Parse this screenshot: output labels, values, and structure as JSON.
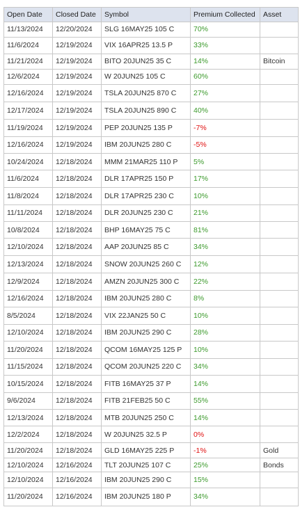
{
  "table": {
    "headers": [
      "Open Date",
      "Closed Date",
      "Symbol",
      "Premium Collected",
      "Asset"
    ],
    "rows": [
      {
        "open": "11/13/2024",
        "closed": "12/20/2024",
        "symbol": "SLG 16MAY25 105 C",
        "premium": "70%",
        "color": "#3c9a2c"
      },
      {
        "open": "11/6/2024",
        "closed": "12/19/2024",
        "symbol": "VIX 16APR25 13.5 P",
        "premium": "33%",
        "color": "#3c9a2c"
      },
      {
        "open": "11/21/2024",
        "closed": "12/19/2024",
        "symbol": "BITO 20JUN25 35 C",
        "premium": "14%",
        "color": "#3c9a2c",
        "asset": "Bitcoin"
      },
      {
        "open": "12/6/2024",
        "closed": "12/19/2024",
        "symbol": "W 20JUN25 105 C",
        "premium": "60%",
        "color": "#3c9a2c"
      },
      {
        "open": "12/16/2024",
        "closed": "12/19/2024",
        "symbol": "TSLA 20JUN25 870 C",
        "premium": "27%",
        "color": "#3c9a2c"
      },
      {
        "open": "12/17/2024",
        "closed": "12/19/2024",
        "symbol": "TSLA 20JUN25 890 C",
        "premium": "40%",
        "color": "#3c9a2c"
      },
      {
        "open": "11/19/2024",
        "closed": "12/19/2024",
        "symbol": "PEP 20JUN25 135 P",
        "premium": "-7%",
        "color": "#e01010"
      },
      {
        "open": "12/16/2024",
        "closed": "12/19/2024",
        "symbol": "IBM 20JUN25 280 C",
        "premium": "-5%",
        "color": "#e01010"
      },
      {
        "open": "10/24/2024",
        "closed": "12/18/2024",
        "symbol": "MMM 21MAR25 110 P",
        "premium": "5%",
        "color": "#3c9a2c"
      },
      {
        "open": "11/6/2024",
        "closed": "12/18/2024",
        "symbol": "DLR 17APR25 150 P",
        "premium": "17%",
        "color": "#3c9a2c"
      },
      {
        "open": "11/8/2024",
        "closed": "12/18/2024",
        "symbol": "DLR 17APR25 230 C",
        "premium": "10%",
        "color": "#3c9a2c"
      },
      {
        "open": "11/11/2024",
        "closed": "12/18/2024",
        "symbol": "DLR 20JUN25 230 C",
        "premium": "21%",
        "color": "#3c9a2c"
      },
      {
        "open": "10/8/2024",
        "closed": "12/18/2024",
        "symbol": "BHP 16MAY25 75 C",
        "premium": "81%",
        "color": "#3c9a2c"
      },
      {
        "open": "12/10/2024",
        "closed": "12/18/2024",
        "symbol": "AAP 20JUN25 85 C",
        "premium": "34%",
        "color": "#3c9a2c"
      },
      {
        "open": "12/13/2024",
        "closed": "12/18/2024",
        "symbol": "SNOW 20JUN25 260 C",
        "premium": "12%",
        "color": "#3c9a2c"
      },
      {
        "open": "12/9/2024",
        "closed": "12/18/2024",
        "symbol": "AMZN 20JUN25 300 C",
        "premium": "22%",
        "color": "#3c9a2c"
      },
      {
        "open": "12/16/2024",
        "closed": "12/18/2024",
        "symbol": "IBM 20JUN25 280 C",
        "premium": "8%",
        "color": "#3c9a2c"
      },
      {
        "open": "8/5/2024",
        "closed": "12/18/2024",
        "symbol": "VIX 22JAN25 50 C",
        "premium": "10%",
        "color": "#3c9a2c"
      },
      {
        "open": "12/10/2024",
        "closed": "12/18/2024",
        "symbol": "IBM 20JUN25 290 C",
        "premium": "28%",
        "color": "#3c9a2c"
      },
      {
        "open": "11/20/2024",
        "closed": "12/18/2024",
        "symbol": "QCOM 16MAY25 125 P",
        "premium": "10%",
        "color": "#3c9a2c"
      },
      {
        "open": "11/15/2024",
        "closed": "12/18/2024",
        "symbol": "QCOM 20JUN25 220 C",
        "premium": "34%",
        "color": "#3c9a2c"
      },
      {
        "open": "10/15/2024",
        "closed": "12/18/2024",
        "symbol": "FITB 16MAY25 37 P",
        "premium": "14%",
        "color": "#3c9a2c"
      },
      {
        "open": "9/6/2024",
        "closed": "12/18/2024",
        "symbol": "FITB 21FEB25 50 C",
        "premium": "55%",
        "color": "#3c9a2c"
      },
      {
        "open": "12/13/2024",
        "closed": "12/18/2024",
        "symbol": "MTB 20JUN25 250 C",
        "premium": "14%",
        "color": "#3c9a2c"
      },
      {
        "open": "12/2/2024",
        "closed": "12/18/2024",
        "symbol": "W 20JUN25 32.5 P",
        "premium": "0%",
        "color": "#e01010"
      },
      {
        "open": "11/20/2024",
        "closed": "12/18/2024",
        "symbol": "GLD 16MAY25 225 P",
        "premium": "-1%",
        "color": "#e01010",
        "asset": "Gold"
      },
      {
        "open": "12/10/2024",
        "closed": "12/16/2024",
        "symbol": "TLT 20JUN25 107 C",
        "premium": "25%",
        "color": "#3c9a2c",
        "asset": "Bonds"
      },
      {
        "open": "12/10/2024",
        "closed": "12/16/2024",
        "symbol": "IBM 20JUN25 290 C",
        "premium": "15%",
        "color": "#3c9a2c"
      },
      {
        "open": "11/20/2024",
        "closed": "12/16/2024",
        "symbol": "IBM 20JUN25 180 P",
        "premium": "34%",
        "color": "#3c9a2c"
      }
    ]
  }
}
